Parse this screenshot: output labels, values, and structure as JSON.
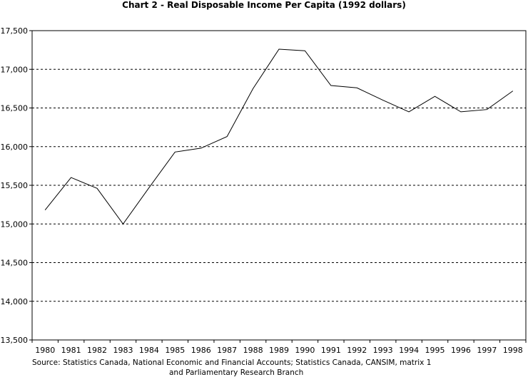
{
  "chart_data": {
    "type": "line",
    "title": "Chart 2 - Real Disposable Income Per Capita (1992 dollars)",
    "xlabel": "",
    "ylabel": "",
    "categories": [
      "1980",
      "1981",
      "1982",
      "1983",
      "1984",
      "1985",
      "1986",
      "1987",
      "1988",
      "1989",
      "1990",
      "1991",
      "1992",
      "1993",
      "1994",
      "1995",
      "1996",
      "1997",
      "1998"
    ],
    "series": [
      {
        "values": [
          15180,
          15600,
          15460,
          15000,
          15470,
          15930,
          15980,
          16130,
          16750,
          17260,
          17240,
          16790,
          16760,
          16600,
          16450,
          16650,
          16450,
          16480,
          16720
        ]
      }
    ],
    "ylim": [
      13500,
      17500
    ],
    "y_ticks": [
      "13,500",
      "14,000",
      "14,500",
      "15,000",
      "15,500",
      "16,000",
      "16,500",
      "17,000",
      "17,500"
    ],
    "y_tick_values": [
      13500,
      14000,
      14500,
      15000,
      15500,
      16000,
      16500,
      17000,
      17500
    ],
    "grid": true,
    "legend": "none",
    "line_color": "#000000",
    "source_line1": "Source: Statistics Canada, National Economic and Financial Accounts; Statistics Canada, CANSIM, matrix 1",
    "source_line2": "and Parliamentary Research Branch"
  }
}
